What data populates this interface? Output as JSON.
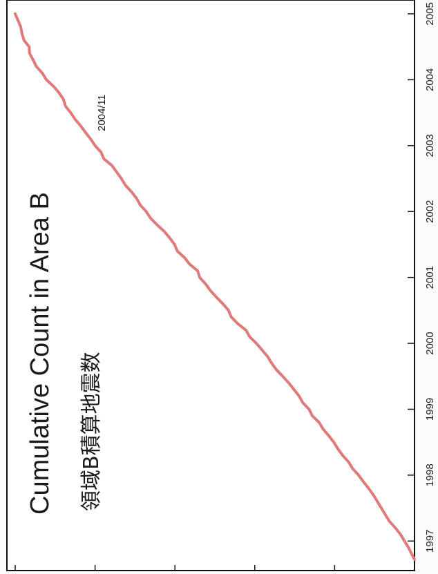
{
  "chart_data": {
    "type": "line",
    "title": "Cumulative Count in Area B",
    "subtitle": "領域B積算地震数",
    "annotation": "2004/11",
    "orientation": "rotated-90-clockwise",
    "x_ticks": [
      "1997",
      "1998",
      "1999",
      "2000",
      "2001",
      "2002",
      "2003",
      "2004",
      "2005"
    ],
    "xlim": [
      1996.72,
      2005.0
    ],
    "ylim": [
      0,
      100
    ],
    "grid": false,
    "line_color": "#e07a7a",
    "series": [
      {
        "x": [
          1996.72,
          1996.78,
          1996.84,
          1996.9,
          1997.0,
          1997.1,
          1997.2,
          1997.26,
          1997.3,
          1997.4,
          1997.5,
          1997.6,
          1997.7,
          1997.8,
          1997.9,
          1998.0,
          1998.1,
          1998.2,
          1998.3,
          1998.4,
          1998.5,
          1998.6,
          1998.7,
          1998.8,
          1998.9,
          1999.0,
          1999.1,
          1999.2,
          1999.3,
          1999.4,
          1999.5,
          1999.6,
          1999.7,
          1999.8,
          1999.9,
          2000.0,
          2000.1,
          2000.2,
          2000.3,
          2000.4,
          2000.5,
          2000.6,
          2000.7,
          2000.8,
          2000.9,
          2001.0,
          2001.1,
          2001.2,
          2001.3,
          2001.4,
          2001.5,
          2001.6,
          2001.7,
          2001.8,
          2001.9,
          2002.0,
          2002.1,
          2002.2,
          2002.3,
          2002.4,
          2002.5,
          2002.6,
          2002.7,
          2002.8,
          2002.9,
          2003.0,
          2003.1,
          2003.2,
          2003.3,
          2003.4,
          2003.5,
          2003.6,
          2003.7,
          2003.8,
          2003.9,
          2004.0,
          2004.1,
          2004.2,
          2004.3,
          2004.4,
          2004.5,
          2004.6,
          2004.7,
          2004.8,
          2004.9,
          2005.0
        ],
        "y": [
          0.0,
          0.5,
          1.0,
          1.5,
          2.5,
          3.5,
          4.8,
          5.7,
          6.3,
          7.3,
          8.3,
          9.3,
          10.3,
          11.5,
          12.8,
          14.0,
          15.5,
          16.5,
          18.0,
          19.2,
          20.2,
          21.5,
          22.9,
          23.9,
          25.6,
          26.4,
          28.0,
          28.9,
          30.2,
          31.5,
          33.0,
          34.6,
          35.8,
          36.8,
          38.2,
          39.6,
          41.3,
          42.2,
          44.3,
          45.9,
          46.6,
          48.0,
          49.6,
          51.1,
          52.3,
          53.8,
          54.3,
          56.3,
          57.6,
          59.4,
          60.1,
          61.3,
          62.7,
          64.5,
          66.1,
          67.2,
          68.7,
          69.6,
          70.9,
          72.4,
          73.4,
          74.6,
          75.8,
          77.8,
          78.5,
          80.0,
          81.1,
          82.4,
          83.6,
          85.0,
          86.1,
          87.4,
          87.9,
          89.0,
          90.4,
          92.2,
          93.2,
          94.7,
          95.5,
          96.4,
          96.5,
          97.8,
          98.3,
          98.6,
          99.3,
          100.0
        ]
      }
    ]
  }
}
